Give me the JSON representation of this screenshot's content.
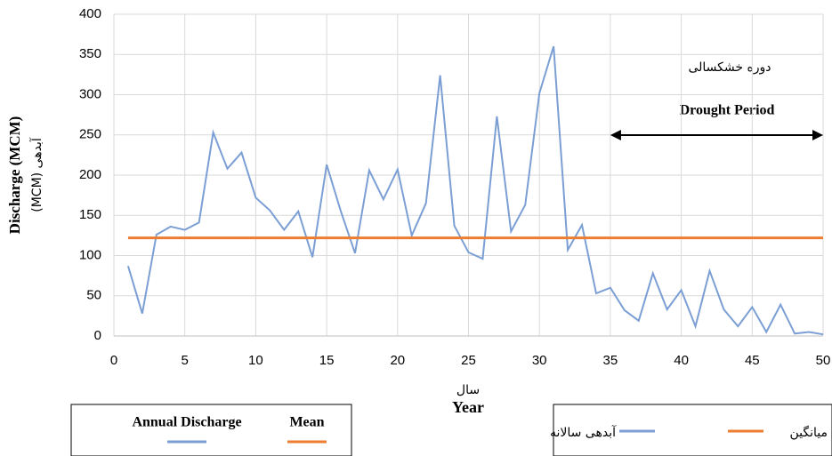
{
  "chart_data": {
    "type": "line",
    "y_label": "Discharge (MCM)",
    "y_label_fa": "(MCM) آبدهی",
    "x_label": "Year",
    "x_label_fa": "سال",
    "x": [
      1,
      2,
      3,
      4,
      5,
      6,
      7,
      8,
      9,
      10,
      11,
      12,
      13,
      14,
      15,
      16,
      17,
      18,
      19,
      20,
      21,
      22,
      23,
      24,
      25,
      26,
      27,
      28,
      29,
      30,
      31,
      32,
      33,
      34,
      35,
      36,
      37,
      38,
      39,
      40,
      41,
      42,
      43,
      44,
      45,
      46,
      47,
      48,
      49,
      50
    ],
    "series": [
      {
        "name": "Annual Discharge",
        "name_fa": "آبدهی سالانه",
        "color": "#7b9fd4",
        "values": [
          87,
          28,
          126,
          136,
          132,
          141,
          253,
          208,
          228,
          172,
          156,
          132,
          155,
          98,
          213,
          155,
          103,
          206,
          170,
          207,
          125,
          165,
          324,
          137,
          104,
          96,
          273,
          130,
          163,
          302,
          360,
          107,
          138,
          53,
          60,
          32,
          19,
          78,
          33,
          57,
          12,
          81,
          33,
          12,
          36,
          5,
          39,
          3,
          5,
          2
        ]
      },
      {
        "name": "Mean",
        "name_fa": "میانگین",
        "color": "#ed7d31",
        "x": [
          1,
          50
        ],
        "values": [
          122,
          122
        ]
      }
    ],
    "drought_period": {
      "label": "Drought Period",
      "label_fa": "دوره خشکسالی",
      "range": [
        35,
        50
      ]
    },
    "xlim": [
      0,
      50
    ],
    "xticks": [
      0,
      5,
      10,
      15,
      20,
      25,
      30,
      35,
      40,
      45,
      50
    ],
    "ylim": [
      0,
      400
    ],
    "yticks": [
      0,
      50,
      100,
      150,
      200,
      250,
      300,
      350,
      400
    ],
    "grid": true
  }
}
